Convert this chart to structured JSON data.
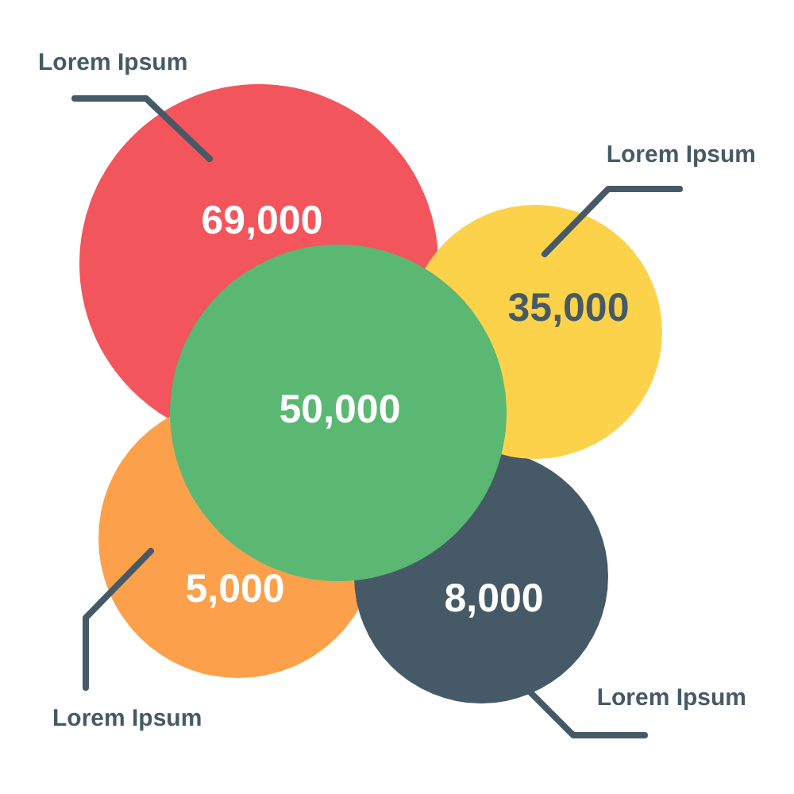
{
  "chart_data": {
    "type": "other",
    "categories": [
      "Lorem Ipsum",
      "Lorem Ipsum",
      null,
      "Lorem Ipsum",
      "Lorem Ipsum"
    ],
    "values": [
      69000,
      35000,
      50000,
      5000,
      8000
    ],
    "value_labels": [
      "69,000",
      "35,000",
      "50,000",
      "5,000",
      "8,000"
    ],
    "colors": [
      "#f2555b",
      "#fdd24b",
      "#5ab873",
      "#fca04b",
      "#455a66"
    ]
  }
}
